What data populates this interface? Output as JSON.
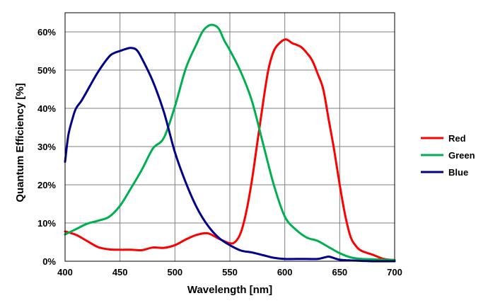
{
  "chart_data": {
    "type": "line",
    "title": "",
    "xlabel": "Wavelength [nm]",
    "ylabel": "Quantum Efficiency [%]",
    "xlim": [
      400,
      700
    ],
    "ylim": [
      0,
      65
    ],
    "x_ticks": [
      400,
      450,
      500,
      550,
      600,
      650,
      700
    ],
    "y_ticks": [
      0,
      10,
      20,
      30,
      40,
      50,
      60
    ],
    "y_tick_labels": [
      "0%",
      "10%",
      "20%",
      "30%",
      "40%",
      "50%",
      "60%"
    ],
    "grid": true,
    "legend_position": "right",
    "series": [
      {
        "name": "Red",
        "color": "#ff0000",
        "x": [
          400,
          410,
          420,
          430,
          440,
          450,
          460,
          470,
          480,
          490,
          500,
          510,
          520,
          530,
          540,
          550,
          555,
          560,
          565,
          570,
          575,
          580,
          585,
          590,
          595,
          600,
          603,
          607,
          610,
          615,
          620,
          625,
          630,
          635,
          640,
          645,
          650,
          655,
          660,
          665,
          670,
          680,
          690,
          700
        ],
        "y": [
          7.8,
          6.9,
          5.3,
          3.7,
          3.1,
          3.0,
          3.0,
          2.9,
          3.6,
          3.5,
          4.2,
          5.7,
          6.9,
          7.3,
          5.9,
          4.7,
          5.1,
          7.5,
          13,
          21,
          31,
          41,
          50,
          55,
          57,
          58,
          57.8,
          57,
          56.7,
          56,
          54.5,
          52.5,
          49,
          45,
          37,
          29,
          20,
          12,
          6.3,
          3.9,
          2.7,
          1.7,
          0.6,
          0.3
        ]
      },
      {
        "name": "Green",
        "color": "#00b050",
        "x": [
          400,
          410,
          420,
          430,
          440,
          450,
          460,
          470,
          480,
          490,
          500,
          510,
          520,
          525,
          530,
          535,
          540,
          545,
          550,
          560,
          570,
          580,
          590,
          600,
          610,
          620,
          630,
          640,
          650,
          660,
          670,
          680,
          690,
          700
        ],
        "y": [
          7.0,
          8.4,
          9.8,
          10.6,
          11.6,
          14.5,
          19.1,
          24,
          29.5,
          32.3,
          40.5,
          50.5,
          57,
          60,
          61.5,
          61.8,
          60.8,
          57.7,
          55.2,
          49.5,
          42,
          31,
          20,
          11.7,
          8.3,
          6.2,
          5.3,
          3.7,
          2.1,
          1.0,
          0.6,
          0.5,
          0.4,
          0.3
        ]
      },
      {
        "name": "Blue",
        "color": "#00008b",
        "x": [
          400,
          403,
          407,
          410,
          415,
          420,
          430,
          440,
          445,
          450,
          455,
          460,
          465,
          470,
          480,
          490,
          500,
          510,
          520,
          530,
          540,
          550,
          560,
          570,
          580,
          590,
          600,
          610,
          620,
          630,
          635,
          640,
          645,
          650,
          660,
          670,
          680,
          690,
          700
        ],
        "y": [
          26,
          33,
          37.5,
          40,
          42,
          44.5,
          49.5,
          53.5,
          54.5,
          55,
          55.5,
          55.8,
          55.3,
          53,
          47,
          39,
          28.5,
          20.5,
          14,
          9.3,
          6.1,
          4.2,
          2.8,
          2.3,
          1.6,
          0.9,
          0.6,
          0.6,
          0.6,
          0.6,
          0.9,
          1.2,
          0.8,
          0.4,
          0.2,
          0.1,
          0.0,
          0.0,
          0.0
        ]
      }
    ]
  }
}
